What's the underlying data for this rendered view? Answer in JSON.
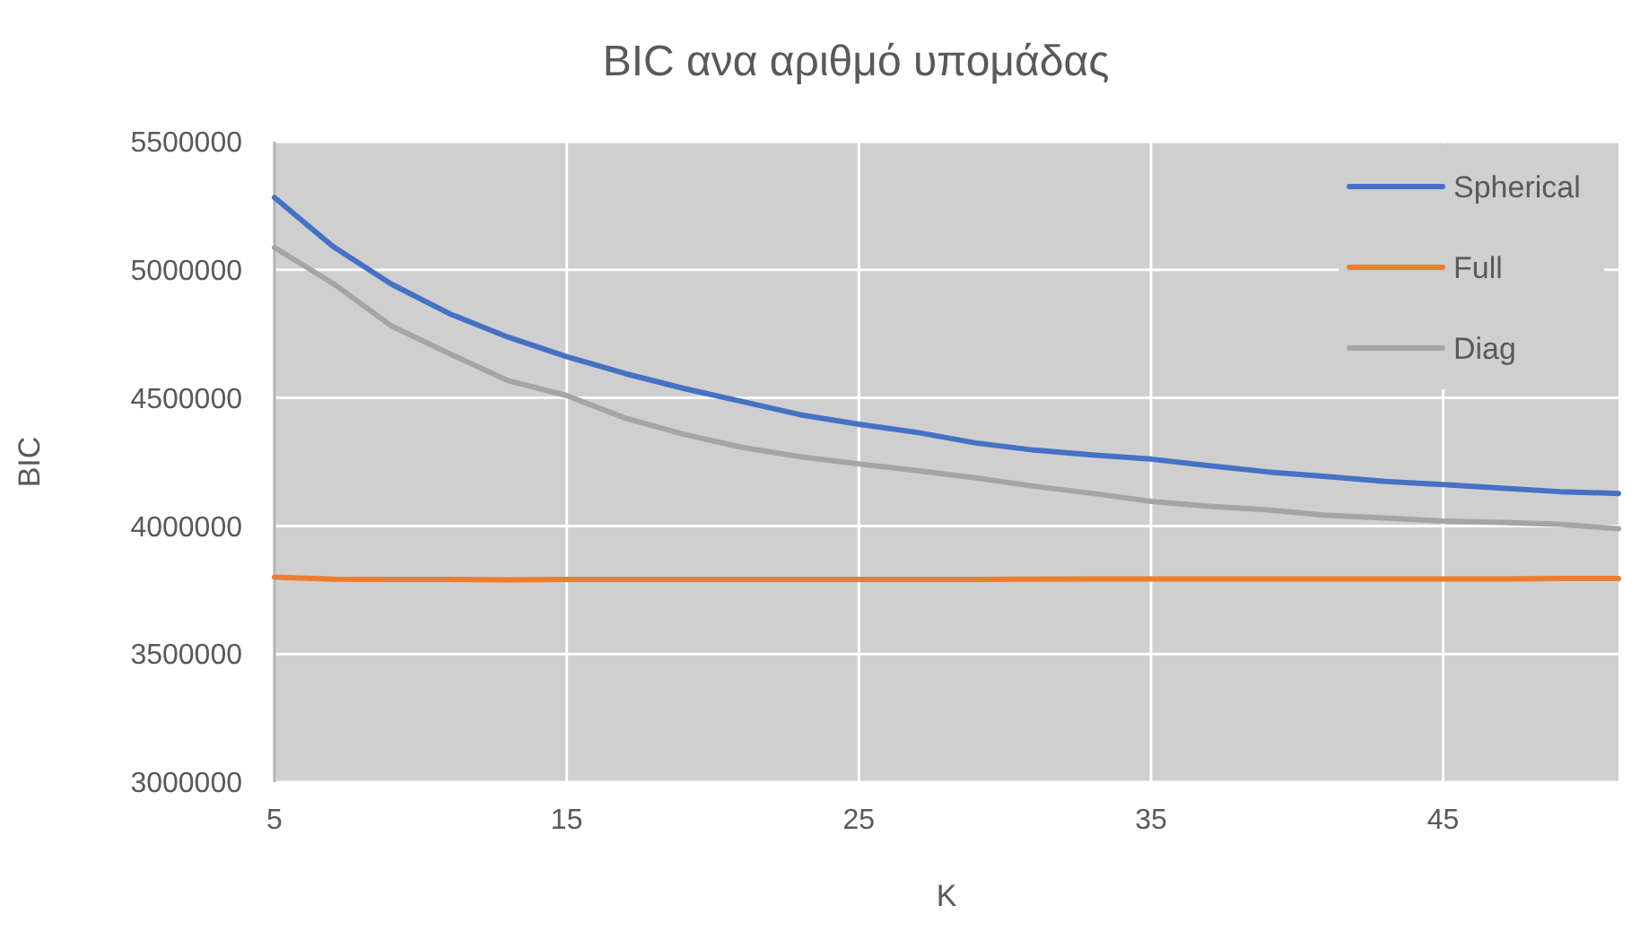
{
  "chart_data": {
    "type": "line",
    "title": "BIC ανα αριθμό υπομάδας",
    "xlabel": "K",
    "ylabel": "BIC",
    "x": [
      5,
      7,
      9,
      11,
      13,
      15,
      17,
      19,
      21,
      23,
      25,
      27,
      29,
      31,
      33,
      35,
      37,
      39,
      41,
      43,
      45,
      47,
      49,
      51
    ],
    "series": [
      {
        "name": "Spherical",
        "color": "#4472c4",
        "values": [
          5282000,
          5091000,
          4944000,
          4828000,
          4737000,
          4661000,
          4595000,
          4537000,
          4486000,
          4434000,
          4397000,
          4365000,
          4324000,
          4296000,
          4277000,
          4261000,
          4235000,
          4211000,
          4193000,
          4174000,
          4162000,
          4148000,
          4134000,
          4127000
        ]
      },
      {
        "name": "Full",
        "color": "#ed7d31",
        "values": [
          3800000,
          3792000,
          3791000,
          3791000,
          3790000,
          3791000,
          3791000,
          3791000,
          3791000,
          3791000,
          3791000,
          3791000,
          3791000,
          3792000,
          3793000,
          3793000,
          3793000,
          3793000,
          3793000,
          3793000,
          3793000,
          3793000,
          3795000,
          3795000
        ]
      },
      {
        "name": "Diag",
        "color": "#a5a5a5",
        "values": [
          5087000,
          4947000,
          4781000,
          4672000,
          4567000,
          4509000,
          4421000,
          4358000,
          4307000,
          4270000,
          4242000,
          4216000,
          4188000,
          4155000,
          4127000,
          4096000,
          4077000,
          4063000,
          4042000,
          4031000,
          4019000,
          4014000,
          4007000,
          3989000
        ]
      }
    ],
    "xlim": [
      5,
      51
    ],
    "xticks": [
      5,
      15,
      25,
      35,
      45
    ],
    "ylim": [
      3000000,
      5500000
    ],
    "yticks": [
      3000000,
      3500000,
      4000000,
      4500000,
      5000000,
      5500000
    ],
    "grid": true,
    "legend": "top right",
    "marker": "none",
    "line_style": "solid"
  }
}
